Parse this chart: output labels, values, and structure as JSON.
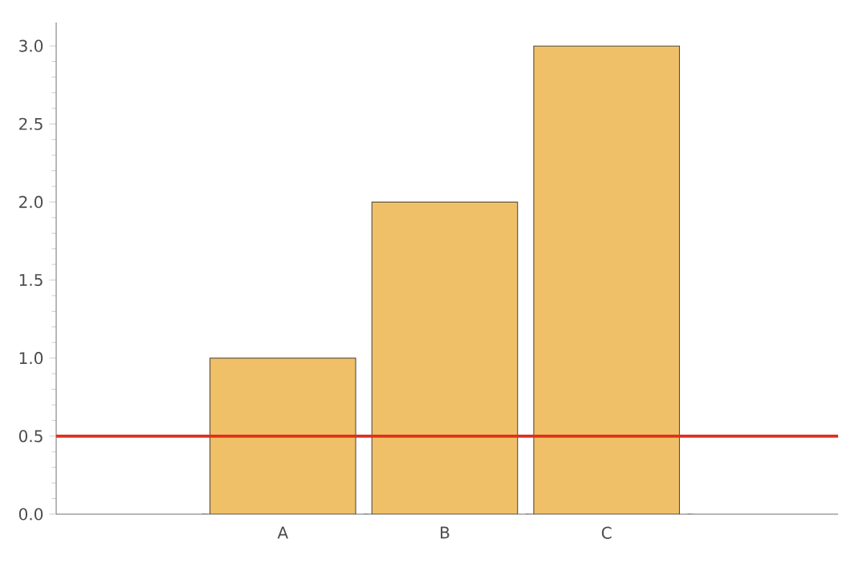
{
  "chart_data": {
    "type": "bar",
    "categories": [
      "A",
      "B",
      "C"
    ],
    "values": [
      1,
      2,
      3
    ],
    "color": "#f0c068",
    "ylim": [
      0,
      3.15
    ],
    "yticks": [
      {
        "value": 0,
        "label": "0.0"
      },
      {
        "value": 0.5,
        "label": "0.5"
      },
      {
        "value": 1,
        "label": "1.0"
      },
      {
        "value": 1.5,
        "label": "1.5"
      },
      {
        "value": 2,
        "label": "2.0"
      },
      {
        "value": 2.5,
        "label": "2.5"
      },
      {
        "value": 3,
        "label": "3.0"
      }
    ],
    "ref_lines": [
      {
        "axis": "y",
        "value": 0.5,
        "color": "#e0301e"
      }
    ],
    "grid": false
  }
}
